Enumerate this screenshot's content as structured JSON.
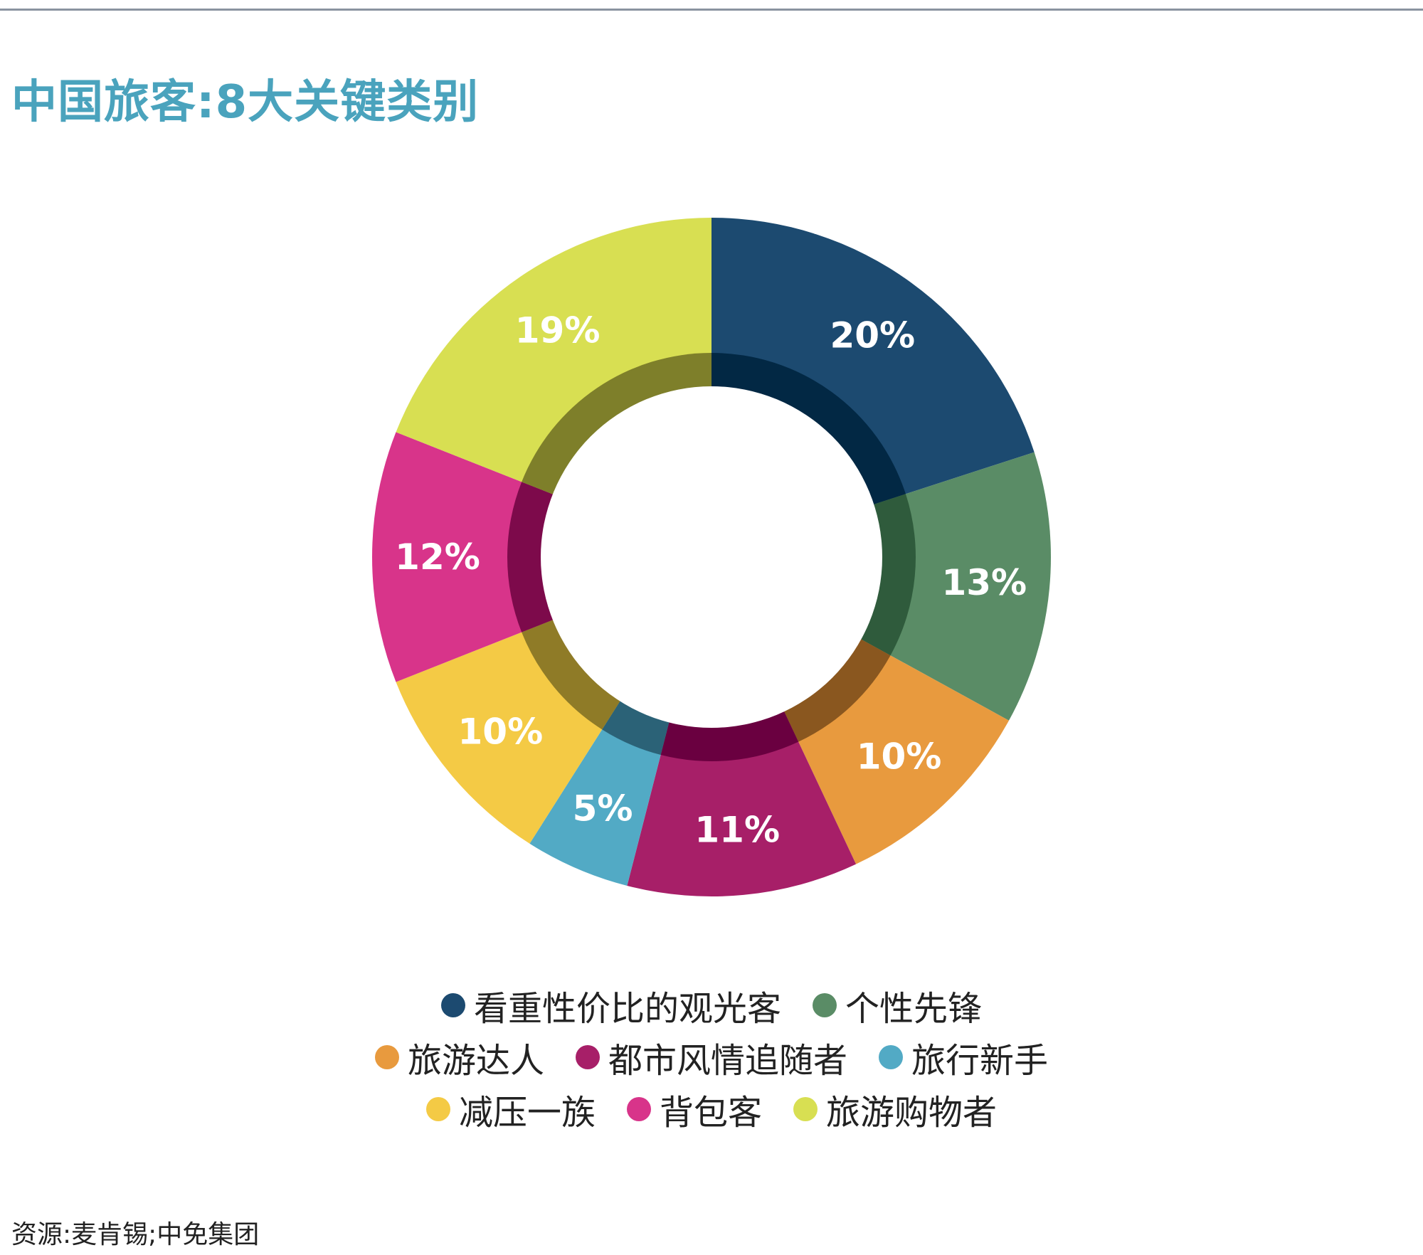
{
  "title": "中国旅客:8大关键类别",
  "source": "资源:麦肯锡;中免集团",
  "chart_data": {
    "type": "pie",
    "variant": "donut",
    "title": "中国旅客:8大关键类别",
    "legend_position": "bottom",
    "slices": [
      {
        "name": "看重性价比的观光客",
        "value": 20,
        "label": "20%",
        "color": "#1c4a70",
        "inner_color": "#022844"
      },
      {
        "name": "个性先锋",
        "value": 13,
        "label": "13%",
        "color": "#5a8c66",
        "inner_color": "#2f5b3c"
      },
      {
        "name": "旅游达人",
        "value": 10,
        "label": "10%",
        "color": "#e89a3e",
        "inner_color": "#8a571f"
      },
      {
        "name": "都市风情追随者",
        "value": 11,
        "label": "11%",
        "color": "#a71f68",
        "inner_color": "#6a0040"
      },
      {
        "name": "旅行新手",
        "value": 5,
        "label": "5%",
        "color": "#52aac5",
        "inner_color": "#2b6277"
      },
      {
        "name": "减压一族",
        "value": 10,
        "label": "10%",
        "color": "#f4ca45",
        "inner_color": "#8f7b27"
      },
      {
        "name": "背包客",
        "value": 12,
        "label": "12%",
        "color": "#d8348a",
        "inner_color": "#7d0a4b"
      },
      {
        "name": "旅游购物者",
        "value": 19,
        "label": "19%",
        "color": "#d8df52",
        "inner_color": "#7e7f2a"
      }
    ]
  },
  "legend_rows": [
    [
      "看重性价比的观光客",
      "个性先锋"
    ],
    [
      "旅游达人",
      "都市风情追随者",
      "旅行新手"
    ],
    [
      "减压一族",
      "背包客",
      "旅游购物者"
    ]
  ]
}
